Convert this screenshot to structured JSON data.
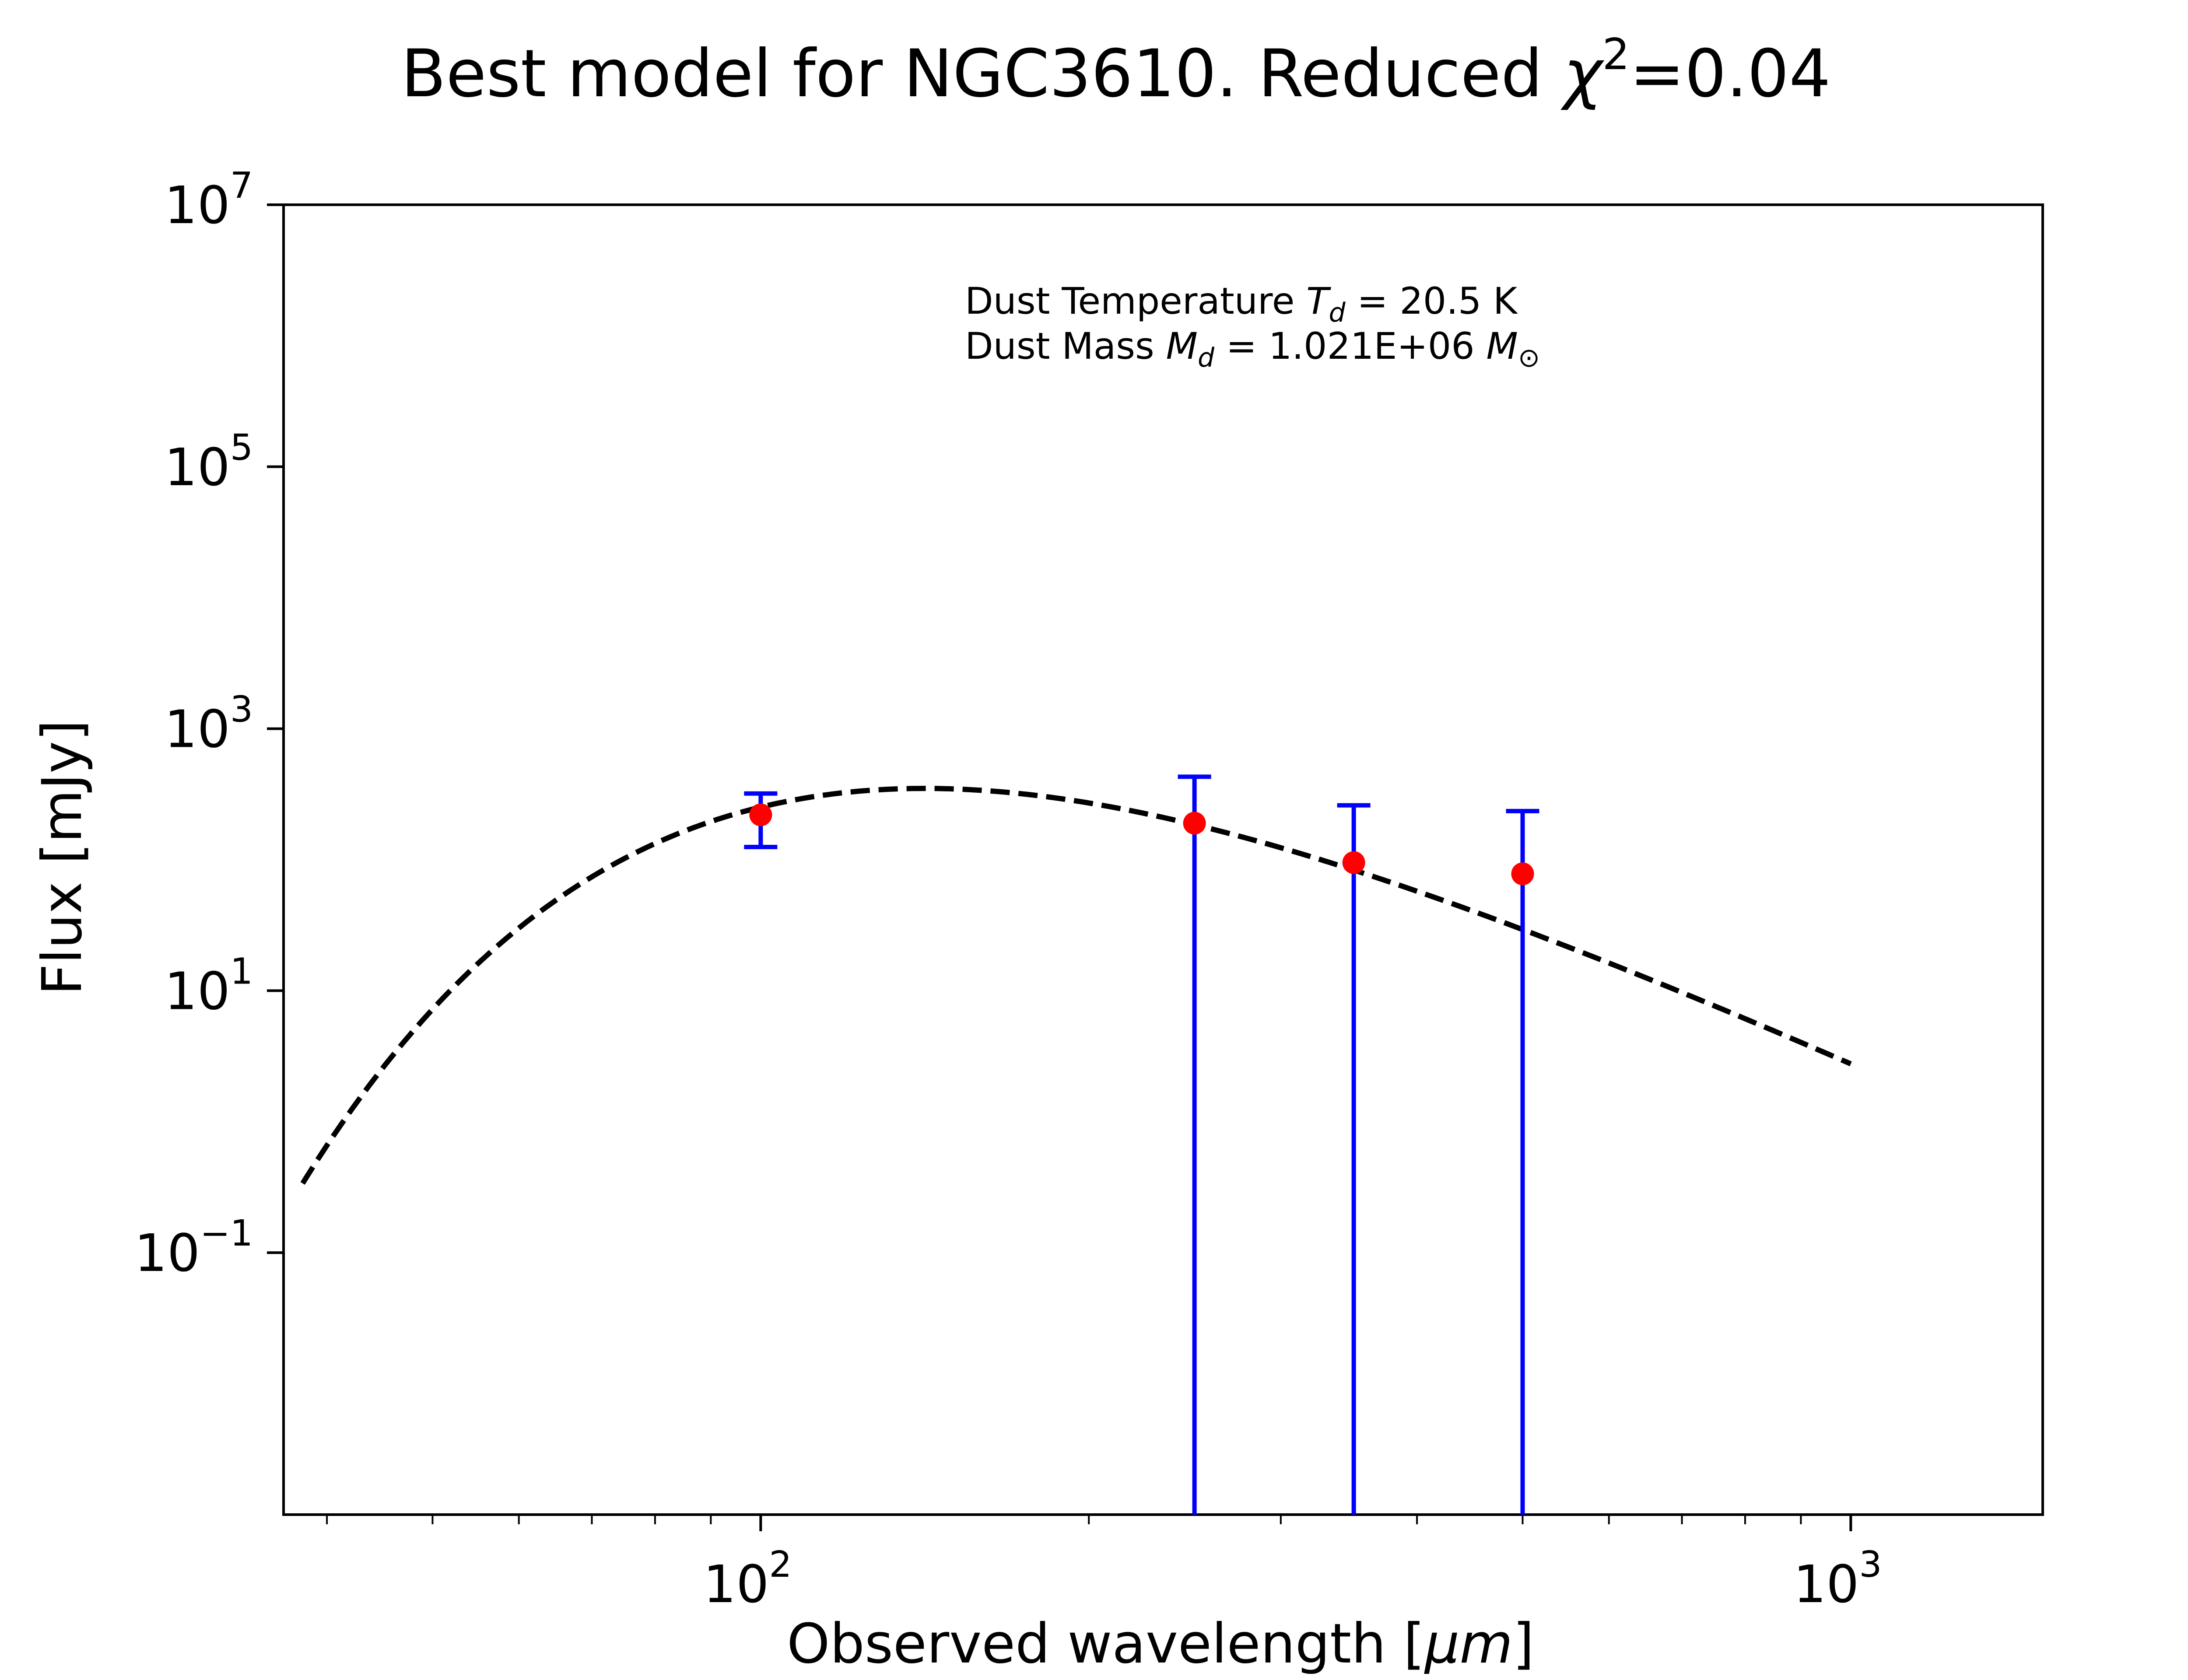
{
  "chart_data": {
    "type": "scatter",
    "title_text": "Best model for NGC3610. Reduced ",
    "title_chi": "χ",
    "title_chi_exp": "2",
    "title_value": "=0.04",
    "xlabel_text": "Observed wavelength [",
    "xlabel_unit": "μm",
    "xlabel_close": "]",
    "ylabel": "Flux [mJy]",
    "xscale": "log",
    "yscale": "log",
    "xlim": [
      36.5,
      1500
    ],
    "ylim": [
      0.001,
      10000000
    ],
    "x_ticks": [
      {
        "value": 100,
        "base": "10",
        "exp": "2"
      },
      {
        "value": 1000,
        "base": "10",
        "exp": "3"
      }
    ],
    "y_ticks": [
      {
        "value": 0.1,
        "base": "10",
        "exp": "−1"
      },
      {
        "value": 10,
        "base": "10",
        "exp": "1"
      },
      {
        "value": 1000,
        "base": "10",
        "exp": "3"
      },
      {
        "value": 100000,
        "base": "10",
        "exp": "5"
      },
      {
        "value": 10000000,
        "base": "10",
        "exp": "7"
      }
    ],
    "annotations": {
      "temp_prefix": "Dust Temperature ",
      "temp_symbol": "T",
      "temp_sub": "d",
      "temp_value": " = 20.5 K",
      "mass_prefix": "Dust Mass ",
      "mass_symbol": "M",
      "mass_sub": "d",
      "mass_value": " = 1.021E+06 ",
      "mass_unit_symbol": "M",
      "mass_unit_sub": "⊙"
    },
    "series": [
      {
        "kind": "model",
        "style": "dashed",
        "color": "#000000",
        "temperature_K": 20.5,
        "x_range": [
          38,
          1000
        ],
        "peak_x": 145,
        "peak_y": 350
      },
      {
        "kind": "observations",
        "marker_color": "#ff0000",
        "errorbar_color": "#0000ff",
        "points": [
          {
            "x": 100,
            "y": 220,
            "y_low": 125,
            "y_high": 320
          },
          {
            "x": 250,
            "y": 190,
            "y_low": 0.001,
            "y_high": 430
          },
          {
            "x": 350,
            "y": 95,
            "y_low": 0.001,
            "y_high": 260
          },
          {
            "x": 500,
            "y": 78,
            "y_low": 0.001,
            "y_high": 235
          }
        ]
      }
    ]
  }
}
